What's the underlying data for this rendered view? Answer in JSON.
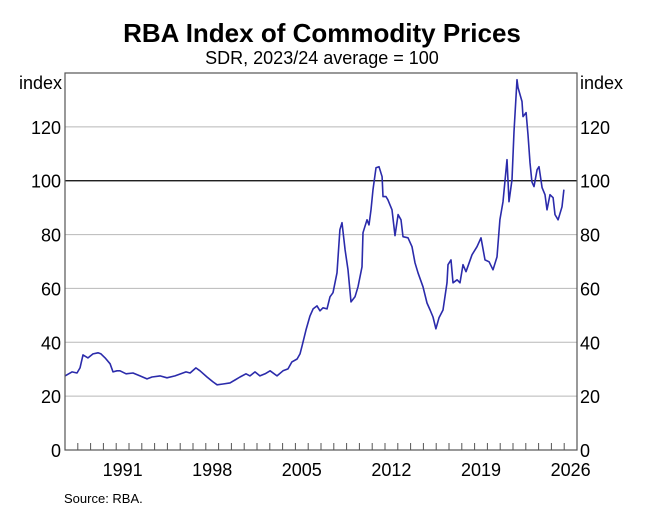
{
  "chart_data": {
    "type": "line",
    "title": "RBA Index of Commodity Prices",
    "subtitle": "SDR, 2023/24 average = 100",
    "ylabel_left": "index",
    "ylabel_right": "index",
    "xlabel": "",
    "xlim": [
      1987,
      2027
    ],
    "ylim": [
      0,
      140
    ],
    "x_ticks": [
      1991,
      1998,
      2005,
      2012,
      2019,
      2026
    ],
    "y_ticks": [
      0,
      20,
      40,
      60,
      80,
      100,
      120
    ],
    "reference_line": 100,
    "grid": true,
    "source": "Source:   RBA.",
    "colors": {
      "line": "#2b2bab",
      "grid": "#b8b8b8",
      "reference": "#000000",
      "axis": "#555555"
    },
    "series": [
      {
        "name": "RBA Index of Commodity Prices",
        "points": [
          [
            1987.0,
            27.5
          ],
          [
            1987.55,
            29.0
          ],
          [
            1987.94,
            28.6
          ],
          [
            1988.17,
            30.5
          ],
          [
            1988.41,
            35.3
          ],
          [
            1988.8,
            34.2
          ],
          [
            1989.19,
            35.7
          ],
          [
            1989.58,
            36.1
          ],
          [
            1989.81,
            35.7
          ],
          [
            1990.13,
            34.2
          ],
          [
            1990.52,
            32.0
          ],
          [
            1990.75,
            29.0
          ],
          [
            1991.06,
            29.4
          ],
          [
            1991.3,
            29.4
          ],
          [
            1991.77,
            28.3
          ],
          [
            1992.31,
            28.6
          ],
          [
            1992.86,
            27.5
          ],
          [
            1993.41,
            26.4
          ],
          [
            1993.8,
            27.1
          ],
          [
            1994.42,
            27.5
          ],
          [
            1994.97,
            26.8
          ],
          [
            1995.59,
            27.5
          ],
          [
            1996.45,
            29.0
          ],
          [
            1996.77,
            28.6
          ],
          [
            1997.23,
            30.5
          ],
          [
            1997.55,
            29.4
          ],
          [
            1998.09,
            27.1
          ],
          [
            1998.56,
            25.3
          ],
          [
            1998.88,
            24.2
          ],
          [
            1999.34,
            24.5
          ],
          [
            1999.89,
            24.9
          ],
          [
            2000.28,
            26.0
          ],
          [
            2000.67,
            27.1
          ],
          [
            2001.14,
            28.3
          ],
          [
            2001.45,
            27.5
          ],
          [
            2001.84,
            29.0
          ],
          [
            2002.23,
            27.5
          ],
          [
            2002.63,
            28.3
          ],
          [
            2003.02,
            29.4
          ],
          [
            2003.56,
            27.5
          ],
          [
            2004.03,
            29.4
          ],
          [
            2004.42,
            30.1
          ],
          [
            2004.73,
            32.7
          ],
          [
            2005.13,
            33.8
          ],
          [
            2005.36,
            35.7
          ],
          [
            2005.52,
            38.7
          ],
          [
            2005.83,
            44.6
          ],
          [
            2006.14,
            49.8
          ],
          [
            2006.38,
            52.4
          ],
          [
            2006.69,
            53.5
          ],
          [
            2006.92,
            51.7
          ],
          [
            2007.16,
            52.8
          ],
          [
            2007.47,
            52.4
          ],
          [
            2007.7,
            56.9
          ],
          [
            2007.94,
            58.4
          ],
          [
            2008.25,
            65.8
          ],
          [
            2008.48,
            81.8
          ],
          [
            2008.64,
            84.4
          ],
          [
            2008.88,
            74.3
          ],
          [
            2009.11,
            66.9
          ],
          [
            2009.34,
            55.0
          ],
          [
            2009.66,
            56.9
          ],
          [
            2009.89,
            60.6
          ],
          [
            2010.2,
            68.0
          ],
          [
            2010.28,
            80.7
          ],
          [
            2010.59,
            85.5
          ],
          [
            2010.75,
            83.6
          ],
          [
            2010.91,
            89.2
          ],
          [
            2011.06,
            96.7
          ],
          [
            2011.3,
            104.8
          ],
          [
            2011.53,
            105.2
          ],
          [
            2011.77,
            101.5
          ],
          [
            2011.84,
            94.1
          ],
          [
            2012.08,
            94.1
          ],
          [
            2012.23,
            92.9
          ],
          [
            2012.55,
            89.2
          ],
          [
            2012.78,
            79.6
          ],
          [
            2013.02,
            87.4
          ],
          [
            2013.25,
            85.5
          ],
          [
            2013.41,
            79.2
          ],
          [
            2013.8,
            78.8
          ],
          [
            2014.11,
            75.5
          ],
          [
            2014.34,
            69.5
          ],
          [
            2014.58,
            65.8
          ],
          [
            2014.97,
            60.6
          ],
          [
            2015.28,
            54.6
          ],
          [
            2015.52,
            52.0
          ],
          [
            2015.75,
            49.4
          ],
          [
            2015.98,
            45.0
          ],
          [
            2016.22,
            49.1
          ],
          [
            2016.53,
            52.0
          ],
          [
            2016.84,
            62.1
          ],
          [
            2016.92,
            68.8
          ],
          [
            2017.16,
            70.6
          ],
          [
            2017.31,
            62.1
          ],
          [
            2017.63,
            63.2
          ],
          [
            2017.86,
            62.1
          ],
          [
            2018.09,
            68.8
          ],
          [
            2018.33,
            66.2
          ],
          [
            2018.8,
            72.5
          ],
          [
            2019.19,
            75.5
          ],
          [
            2019.5,
            78.8
          ],
          [
            2019.81,
            70.6
          ],
          [
            2020.13,
            69.9
          ],
          [
            2020.44,
            66.9
          ],
          [
            2020.75,
            71.7
          ],
          [
            2020.98,
            85.5
          ],
          [
            2021.22,
            92.2
          ],
          [
            2021.53,
            107.8
          ],
          [
            2021.69,
            92.2
          ],
          [
            2021.92,
            100.4
          ],
          [
            2022.08,
            118.2
          ],
          [
            2022.31,
            137.5
          ],
          [
            2022.39,
            134.6
          ],
          [
            2022.7,
            129.4
          ],
          [
            2022.78,
            123.8
          ],
          [
            2023.02,
            125.3
          ],
          [
            2023.17,
            117.1
          ],
          [
            2023.33,
            106.7
          ],
          [
            2023.48,
            99.6
          ],
          [
            2023.64,
            97.8
          ],
          [
            2023.88,
            104.1
          ],
          [
            2024.03,
            105.2
          ],
          [
            2024.27,
            97.4
          ],
          [
            2024.5,
            94.8
          ],
          [
            2024.66,
            89.2
          ],
          [
            2024.89,
            94.8
          ],
          [
            2025.13,
            93.7
          ],
          [
            2025.28,
            87.4
          ],
          [
            2025.52,
            85.5
          ],
          [
            2025.83,
            90.3
          ],
          [
            2025.98,
            96.7
          ]
        ]
      }
    ]
  }
}
